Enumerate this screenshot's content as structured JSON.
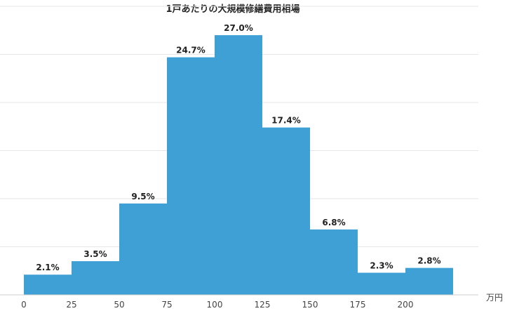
{
  "chart_data": {
    "type": "bar",
    "title": "1戸あたりの大規模修繕費用相場",
    "x_unit": "万円",
    "x_ticks": [
      "0",
      "25",
      "50",
      "75",
      "100",
      "125",
      "150",
      "175",
      "200"
    ],
    "bins": [
      {
        "from": 0,
        "to": 25,
        "value": 2.1,
        "label": "2.1%"
      },
      {
        "from": 25,
        "to": 50,
        "value": 3.5,
        "label": "3.5%"
      },
      {
        "from": 50,
        "to": 75,
        "value": 9.5,
        "label": "9.5%"
      },
      {
        "from": 75,
        "to": 100,
        "value": 24.7,
        "label": "24.7%"
      },
      {
        "from": 100,
        "to": 125,
        "value": 27.0,
        "label": "27.0%"
      },
      {
        "from": 125,
        "to": 150,
        "value": 17.4,
        "label": "17.4%"
      },
      {
        "from": 150,
        "to": 175,
        "value": 6.8,
        "label": "6.8%"
      },
      {
        "from": 175,
        "to": 200,
        "value": 2.3,
        "label": "2.3%"
      },
      {
        "from": 200,
        "to": 225,
        "value": 2.8,
        "label": "2.8%"
      }
    ],
    "xlim": [
      0,
      225
    ],
    "ylim": [
      0,
      30
    ],
    "grid": true,
    "bar_color": "#3fa0d5",
    "grid_color": "#e6e6e6"
  }
}
